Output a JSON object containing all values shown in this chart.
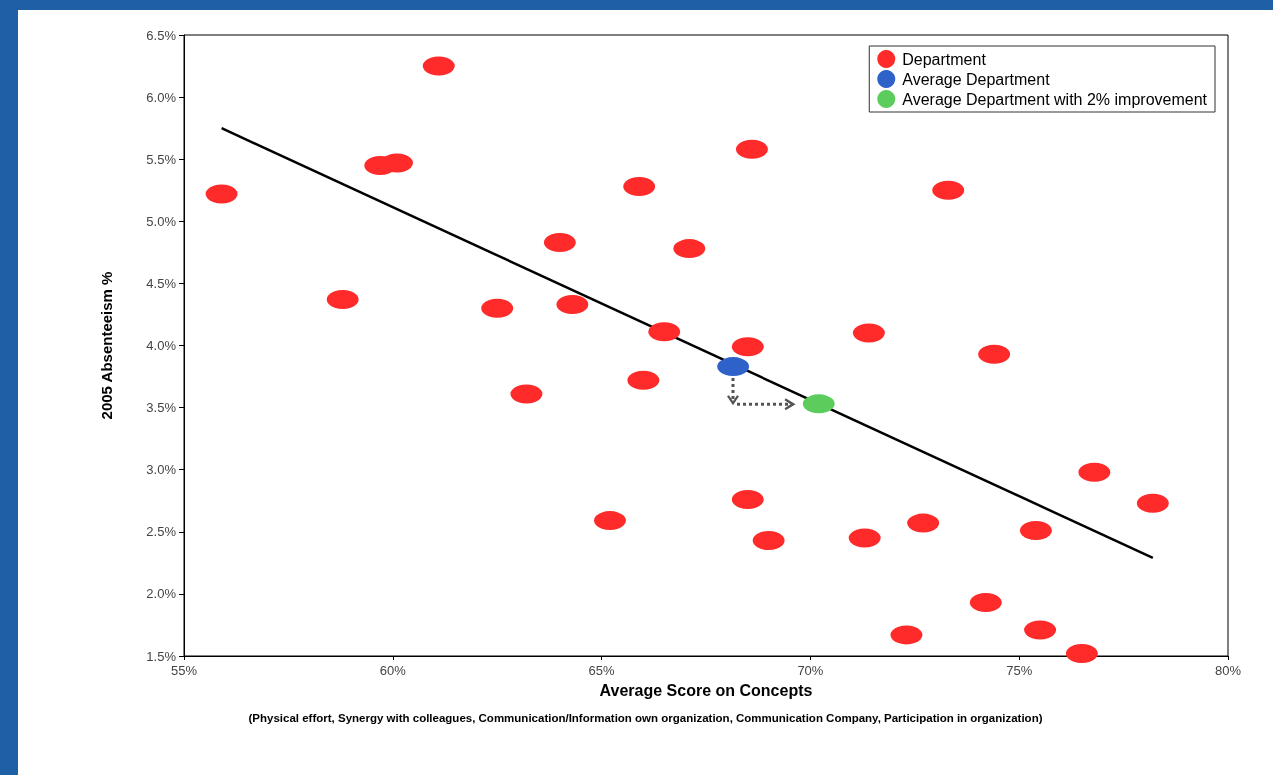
{
  "chart_data": {
    "type": "scatter",
    "xlabel": "Average Score on Concepts",
    "ylabel": "2005 Absenteeism %",
    "annotations": [
      "(Physical effort, Synergy with colleagues, Communication/Information own organization, Communication Company, Participation in organization)"
    ],
    "xlim": [
      55,
      80
    ],
    "xticks": [
      {
        "value": 55,
        "label": "55%"
      },
      {
        "value": 60,
        "label": "60%"
      },
      {
        "value": 65,
        "label": "65%"
      },
      {
        "value": 70,
        "label": "70%"
      },
      {
        "value": 75,
        "label": "75%"
      },
      {
        "value": 80,
        "label": "80%"
      }
    ],
    "ylim": [
      1.5,
      6.5
    ],
    "yticks": [
      {
        "value": 1.5,
        "label": "1.5%"
      },
      {
        "value": 2,
        "label": "2.0%"
      },
      {
        "value": 2.5,
        "label": "2.5%"
      },
      {
        "value": 3,
        "label": "3.0%"
      },
      {
        "value": 3.5,
        "label": "3.5%"
      },
      {
        "value": 4,
        "label": "4.0%"
      },
      {
        "value": 4.5,
        "label": "4.5%"
      },
      {
        "value": 5,
        "label": "5.0%"
      },
      {
        "value": 5.5,
        "label": "5.5%"
      },
      {
        "value": 6,
        "label": "6.0%"
      },
      {
        "value": 6.5,
        "label": "6.5%"
      }
    ],
    "grid": false,
    "legend": "top right",
    "marker": "circle",
    "series": [
      {
        "name": "Department",
        "color": "#ff2a2a",
        "x": [
          55.9,
          58.8,
          59.7,
          60.1,
          61.1,
          62.5,
          63.2,
          64.0,
          64.3,
          65.2,
          65.9,
          66.0,
          66.5,
          67.1,
          68.6,
          68.5,
          68.5,
          69.0,
          71.4,
          71.3,
          73.3,
          72.7,
          74.4,
          72.3,
          74.2,
          75.5,
          75.4,
          76.5,
          76.8,
          78.2
        ],
        "values": [
          5.22,
          4.37,
          5.45,
          5.47,
          6.25,
          4.3,
          3.61,
          4.83,
          4.33,
          2.59,
          5.28,
          3.72,
          4.11,
          4.78,
          5.58,
          3.99,
          2.76,
          2.43,
          4.1,
          2.45,
          5.25,
          2.57,
          3.93,
          1.67,
          1.93,
          1.71,
          2.51,
          1.52,
          2.98,
          2.73
        ]
      },
      {
        "name": "Average Department",
        "color": "#2f62c8",
        "x": [
          68.15
        ],
        "values": [
          3.83
        ]
      },
      {
        "name": "Average Department with 2% improvement",
        "color": "#5ccc5c",
        "x": [
          70.2
        ],
        "values": [
          3.53
        ]
      },
      {
        "type": "line",
        "color": "#000000",
        "x": [
          55.9,
          78.2
        ],
        "values": [
          5.75,
          2.29
        ],
        "marker": "none",
        "line_style": "solid"
      }
    ]
  }
}
